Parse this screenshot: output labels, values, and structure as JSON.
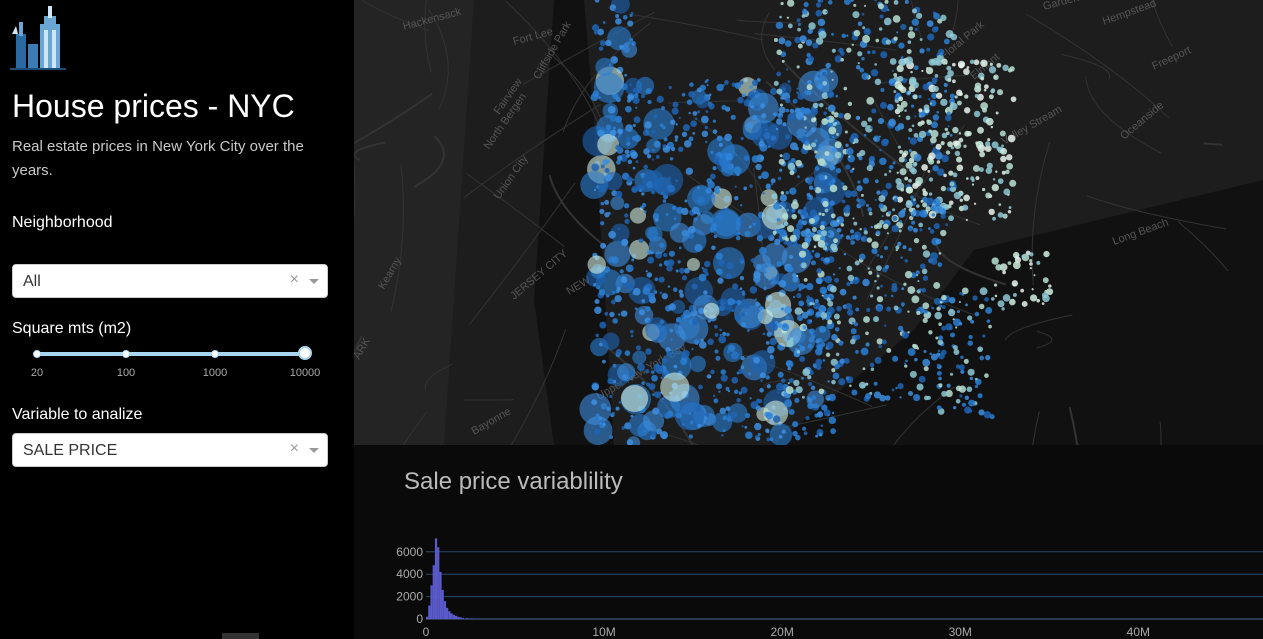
{
  "sidebar": {
    "title": "House prices - NYC",
    "description": "Real estate prices in New York City over the years.",
    "neighborhood": {
      "label": "Neighborhood",
      "value": "All",
      "clear": "×"
    },
    "square": {
      "label": "Square mts (m2)",
      "ticks": [
        "20",
        "100",
        "1000",
        "10000"
      ],
      "range": [
        20,
        10000
      ]
    },
    "variable": {
      "label": "Variable to analize",
      "value": "SALE PRICE",
      "clear": "×"
    }
  },
  "map": {
    "labels": [
      "Hackensack",
      "Fort Lee",
      "Cliffside Park",
      "Fairview",
      "North Bergen",
      "Union City",
      "JERSEY CITY",
      "NEW",
      "Upper New York Bay",
      "Bayonne",
      "Kearny",
      "ARK",
      "Garden",
      "Hempstead",
      "Freeport",
      "Elmont",
      "Valley Stream",
      "Oceanside",
      "Long Beach",
      "Floral Park"
    ],
    "point_colors": [
      "#1e64b4",
      "#2a7fd4",
      "#3c8ee0",
      "#8ec9d6",
      "#b8e0d2",
      "#d0eee0",
      "#e8f4ee"
    ]
  },
  "chart": {
    "title": "Sale price variablility"
  },
  "chart_data": {
    "type": "bar",
    "title": "Sale price variablility",
    "xlabel": "",
    "ylabel": "",
    "x_ticks": [
      "0",
      "10M",
      "20M",
      "30M",
      "40M"
    ],
    "y_ticks": [
      "0",
      "2000",
      "4000",
      "6000"
    ],
    "xlim": [
      0,
      47000000
    ],
    "ylim": [
      0,
      7500
    ],
    "bin_width": 125000,
    "bin_starts": [
      0,
      125000,
      250000,
      375000,
      500000,
      625000,
      750000,
      875000,
      1000000,
      1125000,
      1250000,
      1375000,
      1500000,
      1625000,
      1750000,
      1875000,
      2000000,
      2250000,
      2500000,
      2750000,
      3000000
    ],
    "values": [
      200,
      1200,
      3000,
      4800,
      7200,
      6400,
      4200,
      2600,
      1600,
      1000,
      700,
      500,
      380,
      280,
      200,
      150,
      110,
      80,
      60,
      40,
      30
    ],
    "color": "#5a5acd"
  },
  "colors": {
    "accent": "#a8d6f0"
  }
}
